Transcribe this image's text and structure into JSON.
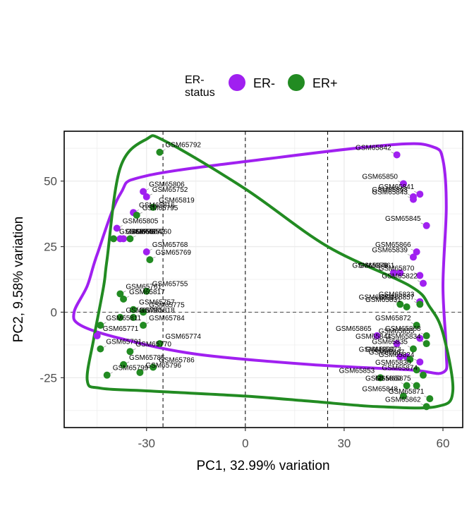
{
  "chart_data": {
    "type": "scatter",
    "xlabel": "PC1, 32.99% variation",
    "ylabel": "PC2, 9.58% variation",
    "xlim": [
      -55,
      66
    ],
    "ylim": [
      -44,
      69
    ],
    "xticks": [
      -30,
      0,
      30,
      60
    ],
    "yticks": [
      -25,
      0,
      25,
      50
    ],
    "xtick_labels": [
      "-30",
      "0",
      "30",
      "60"
    ],
    "ytick_labels": [
      "-25",
      "0",
      "25",
      "50"
    ],
    "vlines": [
      -25,
      0,
      25
    ],
    "hlines": [
      0
    ],
    "legend": {
      "title_line1": "ER-",
      "title_line2": "status",
      "position": "top",
      "entries": [
        {
          "label": "ER-",
          "color": "#a020f0"
        },
        {
          "label": "ER+",
          "color": "#228b22"
        }
      ]
    },
    "series": [
      {
        "name": "ER-",
        "color": "#a020f0",
        "points": [
          {
            "label": "GSM65842",
            "x": 46,
            "y": 60
          },
          {
            "label": "GSM65850",
            "x": 48,
            "y": 49
          },
          {
            "label": "GSM65841",
            "x": 53,
            "y": 45
          },
          {
            "label": "GSM65863",
            "x": 51,
            "y": 44
          },
          {
            "label": "GSM65843",
            "x": 51,
            "y": 43
          },
          {
            "label": "GSM65845",
            "x": 55,
            "y": 33
          },
          {
            "label": "GSM65866",
            "x": 52,
            "y": 23
          },
          {
            "label": "GSM65839",
            "x": 51,
            "y": 21
          },
          {
            "label": "GSM65870",
            "x": 53,
            "y": 14
          },
          {
            "label": "GSM65878",
            "x": 45,
            "y": 15
          },
          {
            "label": "GSM65861",
            "x": 47,
            "y": 15
          },
          {
            "label": "GSM65822",
            "x": 54,
            "y": 11
          },
          {
            "label": "GSM65833",
            "x": 53,
            "y": 4
          },
          {
            "label": "GSM65865",
            "x": 40,
            "y": -9
          },
          {
            "label": "GSM65844",
            "x": 46,
            "y": -12
          },
          {
            "label": "GSM65855",
            "x": 53,
            "y": -10
          },
          {
            "label": "GSM65832",
            "x": 47,
            "y": -17
          },
          {
            "label": "GSM65873",
            "x": 49,
            "y": -17
          },
          {
            "label": "GSM65824",
            "x": 53,
            "y": -19
          },
          {
            "label": "GSM65806",
            "x": -31,
            "y": 46
          },
          {
            "label": "GSM65752",
            "x": -30,
            "y": 44
          },
          {
            "label": "GSM65816",
            "x": -34,
            "y": 38
          },
          {
            "label": "GSM65805",
            "x": -39,
            "y": 32
          },
          {
            "label": "GSM65804",
            "x": -38,
            "y": 28
          },
          {
            "label": "GSM65772",
            "x": -37,
            "y": 28
          },
          {
            "label": "GSM65768",
            "x": -30,
            "y": 23
          },
          {
            "label": "GSM65771",
            "x": -45,
            "y": -9
          }
        ]
      },
      {
        "name": "ER+",
        "color": "#228b22",
        "points": [
          {
            "label": "GSM65792",
            "x": -26,
            "y": 61
          },
          {
            "label": "GSM65819",
            "x": -28,
            "y": 40
          },
          {
            "label": "GSM65795",
            "x": -33,
            "y": 37
          },
          {
            "label": "GSM65760",
            "x": -35,
            "y": 28
          },
          {
            "label": "GSM65773",
            "x": -40,
            "y": 28
          },
          {
            "label": "GSM65769",
            "x": -29,
            "y": 20
          },
          {
            "label": "GSM65761",
            "x": -38,
            "y": 7
          },
          {
            "label": "GSM65817",
            "x": -37,
            "y": 5
          },
          {
            "label": "GSM65755",
            "x": -30,
            "y": 8
          },
          {
            "label": "GSM65757",
            "x": -34,
            "y": 1
          },
          {
            "label": "GSM65790",
            "x": -38,
            "y": -2
          },
          {
            "label": "GSM65818",
            "x": -34,
            "y": -2
          },
          {
            "label": "GSM65775",
            "x": -31,
            "y": 0
          },
          {
            "label": "GSM65811",
            "x": -44,
            "y": -5
          },
          {
            "label": "GSM65784",
            "x": -31,
            "y": -5
          },
          {
            "label": "GSM65774",
            "x": -26,
            "y": -12
          },
          {
            "label": "GSM65791",
            "x": -44,
            "y": -14
          },
          {
            "label": "GSM65770",
            "x": -35,
            "y": -15
          },
          {
            "label": "GSM65785",
            "x": -37,
            "y": -20
          },
          {
            "label": "GSM65786",
            "x": -28,
            "y": -21
          },
          {
            "label": "GSM65796",
            "x": -32,
            "y": -23
          },
          {
            "label": "GSM65799",
            "x": -42,
            "y": -24
          },
          {
            "label": "GSM65821",
            "x": 47,
            "y": 3
          },
          {
            "label": "GSM65831",
            "x": 49,
            "y": 2
          },
          {
            "label": "GSM65857",
            "x": 53,
            "y": 3
          },
          {
            "label": "GSM65872",
            "x": 52,
            "y": -5
          },
          {
            "label": "GSM65868",
            "x": 55,
            "y": -9
          },
          {
            "label": "GSM65834",
            "x": 55,
            "y": -12
          },
          {
            "label": "GSM65835",
            "x": 51,
            "y": -14
          },
          {
            "label": "GSM65867",
            "x": 50,
            "y": -18
          },
          {
            "label": "GSM65830",
            "x": 52,
            "y": -22
          },
          {
            "label": "GSM65874",
            "x": 54,
            "y": -24
          },
          {
            "label": "GSM65853",
            "x": 41,
            "y": -25
          },
          {
            "label": "GSM65875",
            "x": 52,
            "y": -28
          },
          {
            "label": "GSM65860",
            "x": 49,
            "y": -28
          },
          {
            "label": "GSM65848",
            "x": 48,
            "y": -32
          },
          {
            "label": "GSM65871",
            "x": 56,
            "y": -33
          },
          {
            "label": "GSM65862",
            "x": 55,
            "y": -36
          }
        ]
      }
    ],
    "hulls": [
      {
        "name": "ER-",
        "color": "#a020f0",
        "points": [
          [
            -45,
            22
          ],
          [
            -38,
            45
          ],
          [
            -30,
            52
          ],
          [
            10,
            59
          ],
          [
            46,
            64
          ],
          [
            57,
            63
          ],
          [
            60,
            58
          ],
          [
            61,
            40
          ],
          [
            60,
            10
          ],
          [
            61,
            -15
          ],
          [
            60,
            -23
          ],
          [
            50,
            -22
          ],
          [
            20,
            -20
          ],
          [
            -15,
            -16
          ],
          [
            -38,
            -10
          ],
          [
            -50,
            -5
          ],
          [
            -52,
            0
          ],
          [
            -48,
            10
          ]
        ]
      },
      {
        "name": "ER+",
        "color": "#228b22",
        "points": [
          [
            -38,
            55
          ],
          [
            -30,
            66
          ],
          [
            -24,
            65
          ],
          [
            0,
            47
          ],
          [
            25,
            25
          ],
          [
            50,
            10
          ],
          [
            56,
            2
          ],
          [
            60,
            -8
          ],
          [
            63,
            -30
          ],
          [
            58,
            -36
          ],
          [
            40,
            -36
          ],
          [
            20,
            -34
          ],
          [
            0,
            -32
          ],
          [
            -30,
            -30
          ],
          [
            -44,
            -29
          ],
          [
            -48,
            -26
          ],
          [
            -46,
            -10
          ],
          [
            -43,
            10
          ],
          [
            -42,
            20
          ]
        ]
      }
    ]
  }
}
